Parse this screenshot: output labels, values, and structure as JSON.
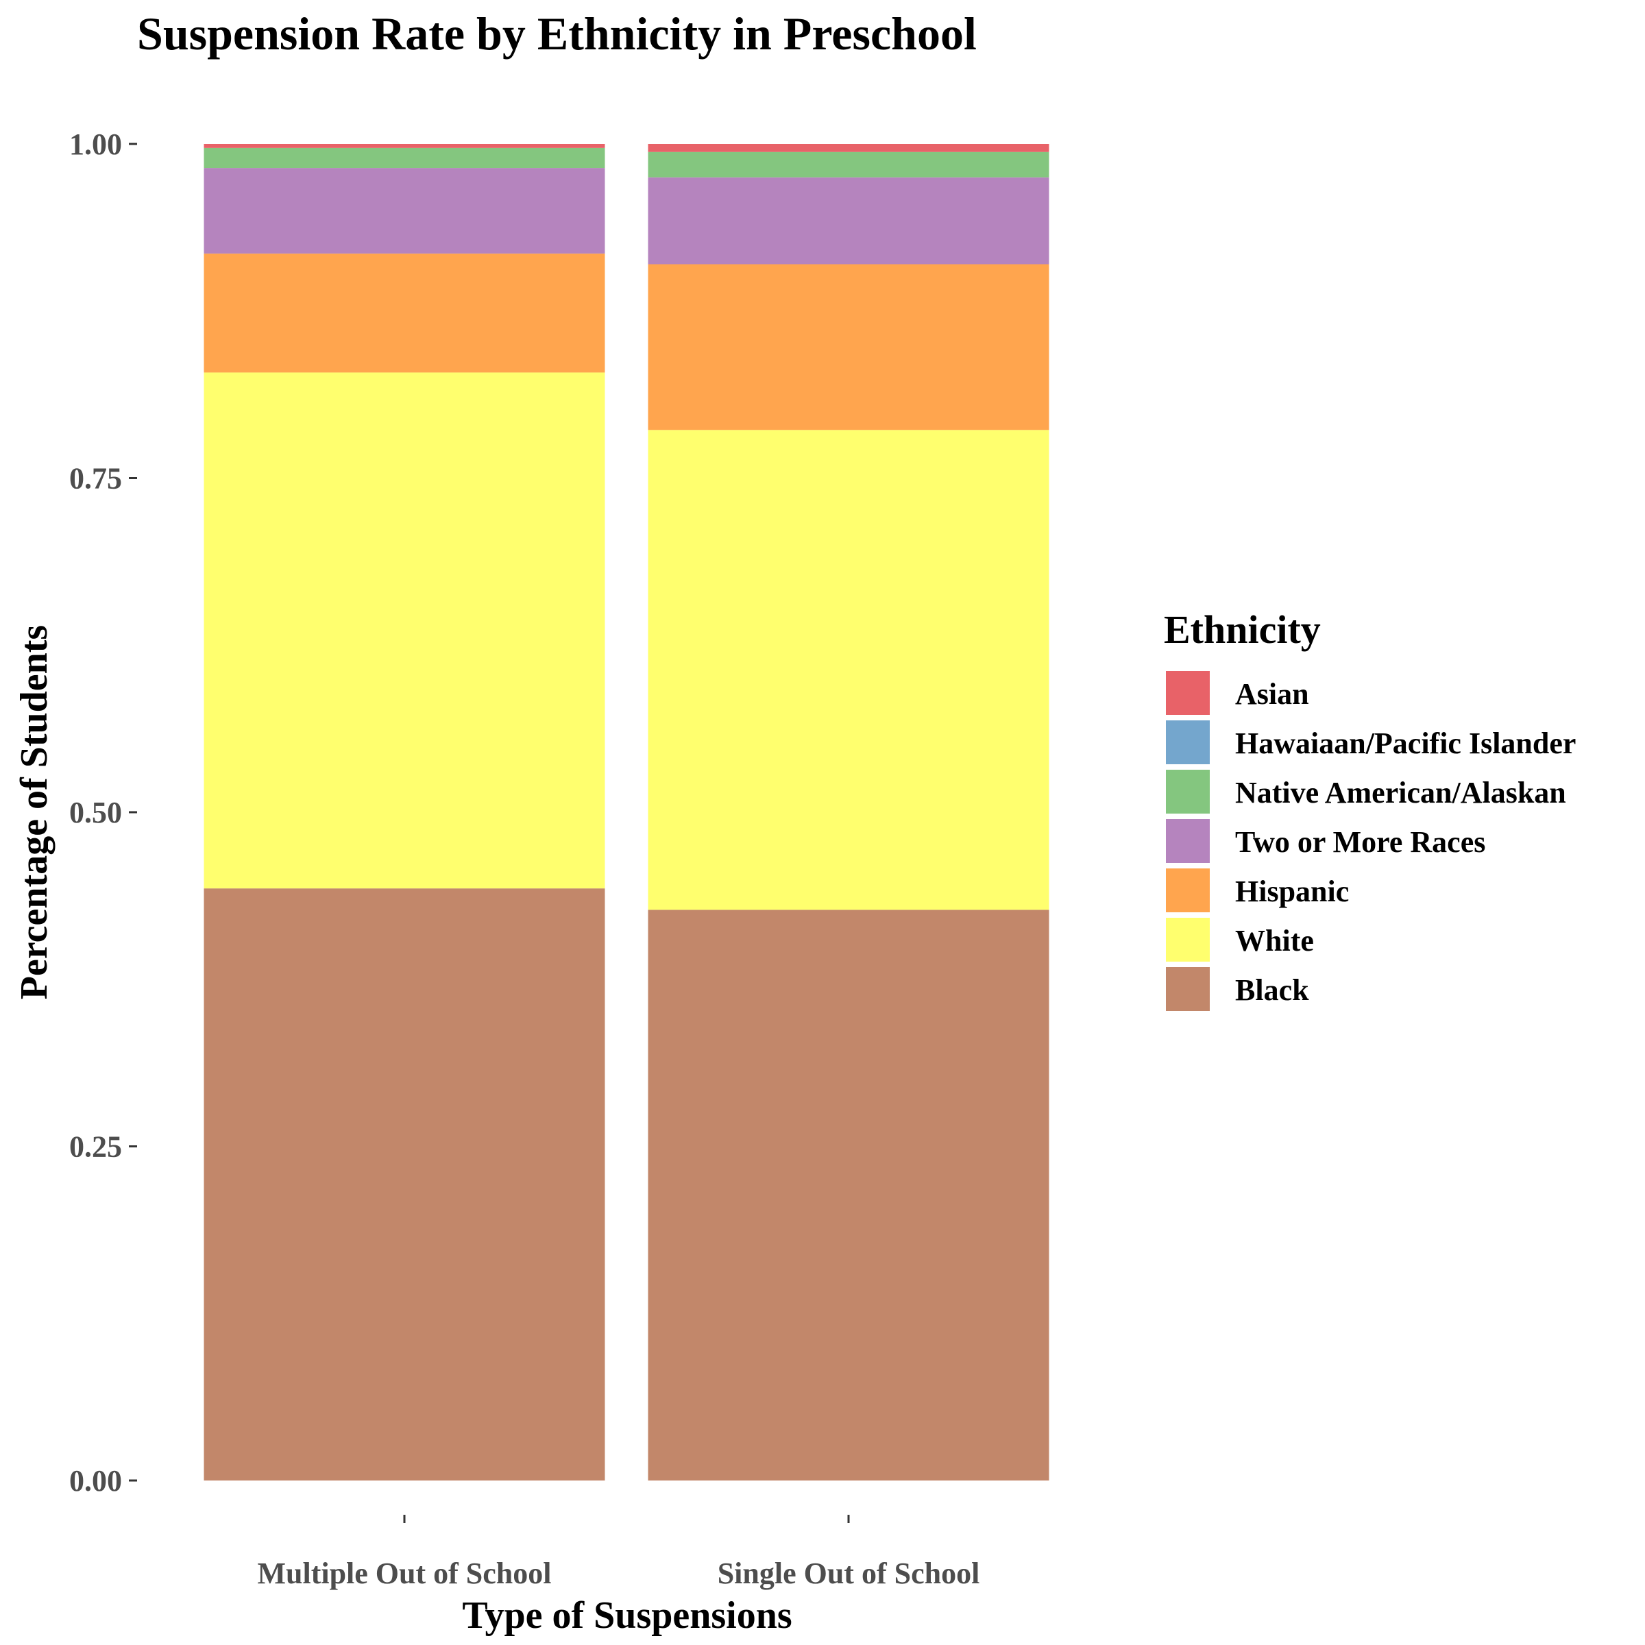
{
  "chart_data": {
    "type": "bar",
    "stacked": true,
    "title": "Suspension Rate by Ethnicity in Preschool",
    "xlabel": "Type of Suspensions",
    "ylabel": "Percentage of Students",
    "ylim": [
      0,
      1
    ],
    "yticks": [
      "0.00",
      "0.25",
      "0.50",
      "0.75",
      "1.00"
    ],
    "categories": [
      "Multiple Out of School",
      "Single Out of School"
    ],
    "legend": {
      "title": "Ethnicity",
      "position": "right"
    },
    "grid": false,
    "series": [
      {
        "name": "Black",
        "color": "#c2876a",
        "values": [
          0.443,
          0.427
        ]
      },
      {
        "name": "White",
        "color": "#ffff6e",
        "values": [
          0.386,
          0.359
        ]
      },
      {
        "name": "Hispanic",
        "color": "#ffa54e",
        "values": [
          0.089,
          0.124
        ]
      },
      {
        "name": "Two or More Races",
        "color": "#b584be",
        "values": [
          0.064,
          0.065
        ]
      },
      {
        "name": "Native American/Alaskan",
        "color": "#84c67f",
        "values": [
          0.015,
          0.019
        ]
      },
      {
        "name": "Hawaiaan/Pacific Islander",
        "color": "#74a6cd",
        "values": [
          0.0,
          0.0
        ]
      },
      {
        "name": "Asian",
        "color": "#e86268",
        "values": [
          0.003,
          0.006
        ]
      }
    ],
    "legend_order": [
      "Asian",
      "Hawaiaan/Pacific Islander",
      "Native American/Alaskan",
      "Two or More Races",
      "Hispanic",
      "White",
      "Black"
    ]
  }
}
